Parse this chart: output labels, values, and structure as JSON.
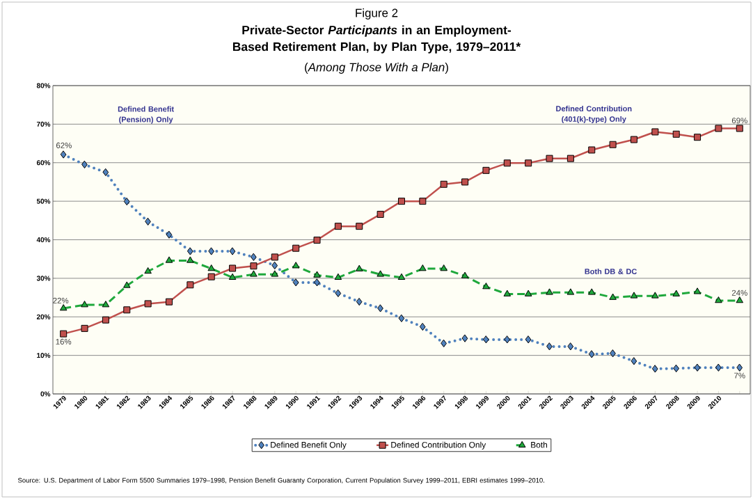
{
  "chart_data": {
    "type": "line",
    "title": "Figure 2",
    "subtitle": "Private-Sector *Participants* in an Employment-Based Retirement Plan, by Plan Type, 1979–2011*",
    "categories": [
      "1979",
      "1980",
      "1981",
      "1982",
      "1983",
      "1984",
      "1985",
      "1986",
      "1987",
      "1988",
      "1989",
      "1990",
      "1991",
      "1992",
      "1993",
      "1994",
      "1995",
      "1996",
      "1997",
      "1998",
      "1999",
      "2000",
      "2001",
      "2002",
      "2003",
      "2004",
      "2005",
      "2006",
      "2007",
      "2008",
      "2009",
      "2010",
      null
    ],
    "series": [
      {
        "name": "Defined Benefit Only",
        "color": "#4f81bd",
        "marker": "diamond",
        "line_style": "dotted",
        "values": [
          62.1,
          59.5,
          57.5,
          49.9,
          44.7,
          41.3,
          37.0,
          37.0,
          37.0,
          35.5,
          33.3,
          28.9,
          28.9,
          26.1,
          23.9,
          22.2,
          19.6,
          17.4,
          13.1,
          14.4,
          14.1,
          14.1,
          14.1,
          12.3,
          12.3,
          10.3,
          10.5,
          8.5,
          6.5,
          6.6,
          6.8,
          6.8,
          6.8
        ]
      },
      {
        "name": "Defined Contribution Only",
        "color": "#c0504d",
        "marker": "square",
        "line_style": "solid",
        "values": [
          15.6,
          17.0,
          19.2,
          21.8,
          23.4,
          23.9,
          28.3,
          30.4,
          32.6,
          33.2,
          35.5,
          37.8,
          39.9,
          43.5,
          43.5,
          46.6,
          50.0,
          50.0,
          54.4,
          55.0,
          58.0,
          59.9,
          59.9,
          61.1,
          61.1,
          63.3,
          64.7,
          66.0,
          68.0,
          67.4,
          66.6,
          68.9,
          68.9
        ]
      },
      {
        "name": "Both",
        "color": "#1fa83c",
        "marker": "triangle",
        "line_style": "dashed",
        "values": [
          22.2,
          23.1,
          23.1,
          28.1,
          31.8,
          34.6,
          34.6,
          32.5,
          30.2,
          31.0,
          31.0,
          33.2,
          30.8,
          30.2,
          32.4,
          31.0,
          30.2,
          32.5,
          32.5,
          30.6,
          27.8,
          25.9,
          25.9,
          26.3,
          26.3,
          26.3,
          25.0,
          25.4,
          25.4,
          25.9,
          26.5,
          24.2,
          24.2
        ]
      }
    ],
    "ylim": [
      0,
      80
    ],
    "yticks": [
      {
        "value": 0,
        "label": "0%"
      },
      {
        "value": 10,
        "label": "10%"
      },
      {
        "value": 20,
        "label": "20%"
      },
      {
        "value": 30,
        "label": "30%"
      },
      {
        "value": 40,
        "label": "40%"
      },
      {
        "value": 50,
        "label": "50%"
      },
      {
        "value": 60,
        "label": "60%"
      },
      {
        "value": 70,
        "label": "70%"
      },
      {
        "value": 80,
        "label": "80%"
      }
    ],
    "grid": "y",
    "legend": "bottom",
    "annotations": [
      "Defined Benefit (Pension) Only",
      "Defined Contribution (401(k)-type) Only",
      "Both DB & DC",
      {
        "text": "62%",
        "x": "1979",
        "y": 62.1
      },
      {
        "text": "16%",
        "x": "1979",
        "y": 15.6
      },
      {
        "text": "22%",
        "x": "1979",
        "y": 22.2
      },
      {
        "text": "69%",
        "y": 68.9
      },
      {
        "text": "24%",
        "y": 24.2
      },
      {
        "text": "7%",
        "y": 6.8
      },
      "(*Among Those With a Plan*)",
      "Source: U.S. Department of Labor Form 5500 Summaries 1979–1998, Pension Benefit Guaranty Corporation, Current Population Survey 1999–2011, EBRI estimates 1999–2010."
    ]
  }
}
